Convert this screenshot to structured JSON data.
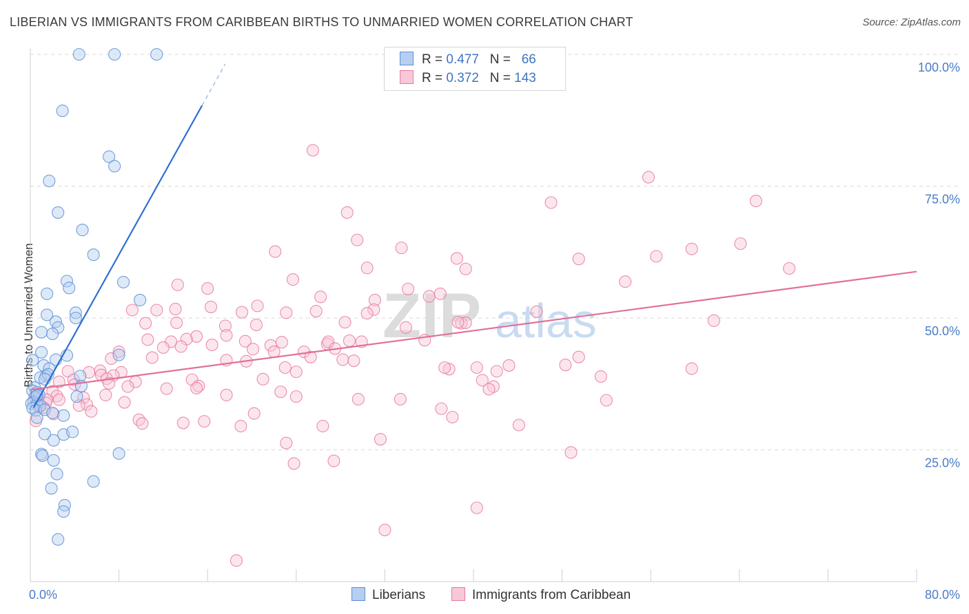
{
  "title": "LIBERIAN VS IMMIGRANTS FROM CARIBBEAN BIRTHS TO UNMARRIED WOMEN CORRELATION CHART",
  "source": "Source: ZipAtlas.com",
  "watermark": {
    "zip": "ZIP",
    "atlas": "atlas"
  },
  "colors": {
    "liberians": "#5b8fd6",
    "liberians_fill": "#b6cff0",
    "caribbean": "#e87aa0",
    "caribbean_fill": "#f8c7d8",
    "tick_text": "#4a7cc7",
    "grid": "#d9d9d9"
  },
  "legend": {
    "rows": [
      {
        "r_label": "R =",
        "r_value": "0.477",
        "n_label": "N =",
        "n_value": "66"
      },
      {
        "r_label": "R =",
        "r_value": "0.372",
        "n_label": "N =",
        "n_value": "143"
      }
    ]
  },
  "bottom_legend": [
    "Liberians",
    "Immigrants from Caribbean"
  ],
  "chart_data": {
    "type": "scatter",
    "title": "LIBERIAN VS IMMIGRANTS FROM CARIBBEAN BIRTHS TO UNMARRIED WOMEN CORRELATION CHART",
    "xlabel": "",
    "ylabel": "Births to Unmarried Women",
    "xlim": [
      0,
      80
    ],
    "ylim": [
      0,
      102
    ],
    "x_tick_labels": [
      "0.0%",
      "80.0%"
    ],
    "y_ticks": [
      25,
      50,
      75,
      100
    ],
    "y_tick_labels": [
      "25.0%",
      "50.0%",
      "75.0%",
      "100.0%"
    ],
    "grid": true,
    "legend_position": "top-center",
    "series": [
      {
        "name": "Liberians",
        "r": 0.477,
        "n": 66,
        "trend": {
          "x0": 0.3,
          "y0": 33,
          "x1": 15.5,
          "y1": 90.3,
          "dashed_to_x": 17.6,
          "dashed_to_y": 98.2
        },
        "points": [
          [
            4.4,
            100
          ],
          [
            7.6,
            100
          ],
          [
            11.4,
            100
          ],
          [
            2.9,
            89.3
          ],
          [
            7.1,
            80.6
          ],
          [
            7.6,
            78.8
          ],
          [
            1.7,
            76
          ],
          [
            2.5,
            70
          ],
          [
            4.7,
            66.7
          ],
          [
            5.7,
            62
          ],
          [
            3.3,
            57
          ],
          [
            3.5,
            55.7
          ],
          [
            1.5,
            54.6
          ],
          [
            8.4,
            56.8
          ],
          [
            9.9,
            53.4
          ],
          [
            4.1,
            51
          ],
          [
            1.5,
            50.6
          ],
          [
            4.1,
            50
          ],
          [
            2.3,
            49.3
          ],
          [
            2.5,
            48.2
          ],
          [
            1.0,
            47.3
          ],
          [
            2.0,
            47.0
          ],
          [
            1.0,
            43.5
          ],
          [
            3.3,
            42.9
          ],
          [
            8.0,
            43.0
          ],
          [
            0.2,
            42
          ],
          [
            2.3,
            42.1
          ],
          [
            1.2,
            41
          ],
          [
            1.7,
            40.4
          ],
          [
            1.4,
            39
          ],
          [
            0.9,
            38.7
          ],
          [
            1.6,
            39.3
          ],
          [
            1.3,
            38.4
          ],
          [
            4.5,
            39
          ],
          [
            4.6,
            37.1
          ],
          [
            0.4,
            36.8
          ],
          [
            0.2,
            36.2
          ],
          [
            0.6,
            35.9
          ],
          [
            0.8,
            35.4
          ],
          [
            0.4,
            35
          ],
          [
            0.3,
            34.1
          ],
          [
            0.1,
            33.8
          ],
          [
            0.6,
            33.6
          ],
          [
            0.9,
            33.4
          ],
          [
            0.2,
            32.9
          ],
          [
            0.5,
            32.5
          ],
          [
            1.3,
            32.6
          ],
          [
            0.6,
            31.1
          ],
          [
            3.0,
            31.5
          ],
          [
            4.2,
            35.1
          ],
          [
            2.0,
            32.0
          ],
          [
            1.3,
            28
          ],
          [
            3.0,
            27.9
          ],
          [
            3.8,
            28.4
          ],
          [
            2.1,
            26.8
          ],
          [
            1.0,
            24.2
          ],
          [
            1.1,
            23.9
          ],
          [
            8.0,
            24.3
          ],
          [
            2.1,
            23.0
          ],
          [
            2.4,
            20.4
          ],
          [
            5.7,
            19.0
          ],
          [
            1.9,
            17.7
          ],
          [
            3.1,
            14.5
          ],
          [
            3.0,
            13.3
          ],
          [
            2.5,
            8.0
          ],
          [
            0.6,
            35.3
          ]
        ]
      },
      {
        "name": "Immigrants from Caribbean",
        "r": 0.372,
        "n": 143,
        "trend": {
          "x0": 0,
          "y0": 36.4,
          "x1": 80,
          "y1": 58.8
        },
        "points": [
          [
            25.5,
            81.8
          ],
          [
            55.8,
            76.7
          ],
          [
            47.0,
            71.9
          ],
          [
            65.5,
            72.2
          ],
          [
            28.6,
            70
          ],
          [
            29.5,
            64.8
          ],
          [
            22.1,
            62.6
          ],
          [
            33.5,
            63.3
          ],
          [
            59.7,
            63.1
          ],
          [
            64.1,
            64.1
          ],
          [
            38.5,
            61.3
          ],
          [
            49.5,
            61.2
          ],
          [
            56.5,
            61.7
          ],
          [
            39.3,
            59.3
          ],
          [
            30.4,
            59.5
          ],
          [
            68.5,
            59.4
          ],
          [
            23.7,
            57.3
          ],
          [
            53.7,
            56.9
          ],
          [
            13.3,
            56.3
          ],
          [
            16.0,
            55.6
          ],
          [
            34.1,
            55.5
          ],
          [
            36.0,
            54.1
          ],
          [
            37.0,
            54.6
          ],
          [
            26.2,
            54.0
          ],
          [
            31.1,
            53.4
          ],
          [
            20.5,
            52.3
          ],
          [
            13.1,
            51.7
          ],
          [
            11.4,
            51.5
          ],
          [
            9.2,
            51.5
          ],
          [
            19.1,
            51.1
          ],
          [
            25.8,
            51.3
          ],
          [
            31.0,
            51.6
          ],
          [
            45.7,
            51.2
          ],
          [
            16.3,
            52.1
          ],
          [
            23.1,
            51.0
          ],
          [
            28.4,
            49.2
          ],
          [
            33.9,
            48.2
          ],
          [
            38.9,
            49.0
          ],
          [
            39.3,
            49.1
          ],
          [
            38.6,
            49.2
          ],
          [
            61.7,
            49.5
          ],
          [
            30.4,
            50.9
          ],
          [
            17.6,
            48.5
          ],
          [
            20.4,
            48.7
          ],
          [
            10.4,
            49.0
          ],
          [
            13.2,
            49.1
          ],
          [
            17.7,
            46.7
          ],
          [
            15.0,
            46.5
          ],
          [
            14.1,
            46.0
          ],
          [
            10.6,
            45.9
          ],
          [
            12.7,
            45.5
          ],
          [
            19.4,
            45.6
          ],
          [
            20.1,
            44.1
          ],
          [
            22.7,
            45.4
          ],
          [
            26.8,
            45.1
          ],
          [
            28.8,
            45.7
          ],
          [
            29.9,
            45.5
          ],
          [
            26.9,
            45.5
          ],
          [
            35.6,
            45.8
          ],
          [
            21.7,
            44.8
          ],
          [
            13.6,
            44.6
          ],
          [
            12.0,
            44.4
          ],
          [
            16.4,
            44.9
          ],
          [
            27.5,
            44.2
          ],
          [
            22.0,
            43.6
          ],
          [
            24.7,
            43.6
          ],
          [
            8.0,
            43.6
          ],
          [
            7.3,
            42.3
          ],
          [
            11.0,
            42.5
          ],
          [
            17.7,
            42.0
          ],
          [
            19.5,
            41.8
          ],
          [
            25.3,
            42.6
          ],
          [
            28.2,
            42.1
          ],
          [
            49.5,
            42.6
          ],
          [
            43.2,
            41.0
          ],
          [
            29.2,
            41.9
          ],
          [
            23.0,
            40.6
          ],
          [
            37.8,
            40.3
          ],
          [
            37.4,
            40.6
          ],
          [
            40.3,
            40.6
          ],
          [
            48.3,
            41.1
          ],
          [
            59.7,
            40.4
          ],
          [
            24.0,
            39.8
          ],
          [
            42.1,
            39.9
          ],
          [
            6.3,
            40.0
          ],
          [
            8.2,
            39.7
          ],
          [
            3.4,
            39.9
          ],
          [
            5.3,
            39.7
          ],
          [
            7.5,
            39.1
          ],
          [
            51.5,
            38.9
          ],
          [
            6.4,
            39.2
          ],
          [
            3.9,
            38.3
          ],
          [
            6.9,
            38.5
          ],
          [
            7.1,
            37.6
          ],
          [
            9.5,
            37.9
          ],
          [
            2.6,
            37.9
          ],
          [
            4.0,
            37.4
          ],
          [
            14.6,
            38.3
          ],
          [
            21.0,
            38.4
          ],
          [
            40.8,
            38.2
          ],
          [
            41.8,
            37.0
          ],
          [
            15.2,
            37.1
          ],
          [
            12.3,
            36.6
          ],
          [
            2.0,
            36.1
          ],
          [
            41.4,
            36.5
          ],
          [
            8.8,
            37.0
          ],
          [
            6.8,
            35.4
          ],
          [
            17.7,
            35.4
          ],
          [
            15.0,
            36.7
          ],
          [
            22.6,
            36.0
          ],
          [
            24.0,
            35.1
          ],
          [
            0.5,
            35.1
          ],
          [
            2.4,
            35.2
          ],
          [
            1.5,
            34.5
          ],
          [
            4.8,
            34.9
          ],
          [
            0.7,
            34.6
          ],
          [
            1.4,
            33.9
          ],
          [
            2.6,
            34.5
          ],
          [
            1.2,
            33.0
          ],
          [
            0.8,
            33.1
          ],
          [
            29.6,
            34.6
          ],
          [
            33.4,
            34.6
          ],
          [
            52.0,
            34.4
          ],
          [
            5.1,
            33.6
          ],
          [
            8.5,
            34.0
          ],
          [
            4.4,
            33.4
          ],
          [
            5.5,
            32.3
          ],
          [
            2.1,
            31.8
          ],
          [
            20.2,
            31.9
          ],
          [
            37.1,
            32.8
          ],
          [
            9.8,
            30.7
          ],
          [
            0.5,
            30.5
          ],
          [
            13.8,
            30.1
          ],
          [
            15.7,
            30.4
          ],
          [
            10.1,
            30.0
          ],
          [
            19.0,
            29.5
          ],
          [
            26.4,
            29.5
          ],
          [
            38.1,
            31.2
          ],
          [
            44.1,
            29.7
          ],
          [
            31.6,
            27.0
          ],
          [
            23.1,
            26.3
          ],
          [
            48.8,
            24.5
          ],
          [
            23.8,
            22.4
          ],
          [
            27.4,
            22.9
          ],
          [
            40.3,
            14.0
          ],
          [
            32.0,
            9.8
          ],
          [
            18.6,
            4.0
          ]
        ]
      }
    ]
  }
}
